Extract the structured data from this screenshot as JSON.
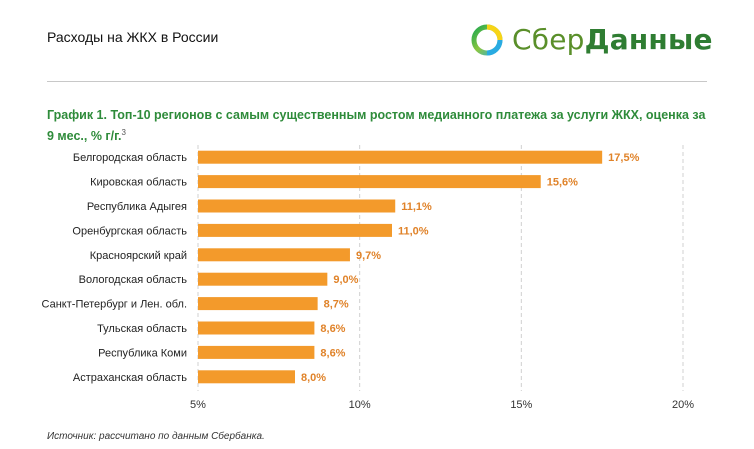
{
  "header": {
    "title": "Расходы на ЖКХ в России",
    "logo": {
      "part1": "Сбер",
      "part2": "Данные",
      "icon": "sber-circle-logo-icon"
    }
  },
  "chart_title": {
    "main": "График 1. Топ-10 регионов с самым существенным ростом медианного платежа за услуги ЖКХ, оценка за 9 мес., % г/г.",
    "footnote": "3"
  },
  "chart_data": {
    "type": "bar",
    "orientation": "horizontal",
    "categories": [
      "Белгородская область",
      "Кировская область",
      "Республика Адыгея",
      "Оренбургская область",
      "Красноярский край",
      "Вологодская область",
      "Санкт-Петербург и Лен. обл.",
      "Тульская область",
      "Республика Коми",
      "Астраханская область"
    ],
    "values": [
      17.5,
      15.6,
      11.1,
      11.0,
      9.7,
      9.0,
      8.7,
      8.6,
      8.6,
      8.0
    ],
    "value_labels": [
      "17,5%",
      "15,6%",
      "11,1%",
      "11,0%",
      "9,7%",
      "9,0%",
      "8,7%",
      "8,6%",
      "8,6%",
      "8,0%"
    ],
    "xlim": [
      5,
      20
    ],
    "xticks": [
      5,
      10,
      15,
      20
    ],
    "xtick_labels": [
      "5%",
      "10%",
      "15%",
      "20%"
    ],
    "grid": "vertical dashed",
    "bar_color": "#f39a2b",
    "label_color": "#e0832a"
  },
  "footer": {
    "source": "Источник: рассчитано по данным Сбербанка."
  },
  "colors": {
    "accent_green": "#2e8b3a",
    "bar_orange": "#f39a2b"
  }
}
